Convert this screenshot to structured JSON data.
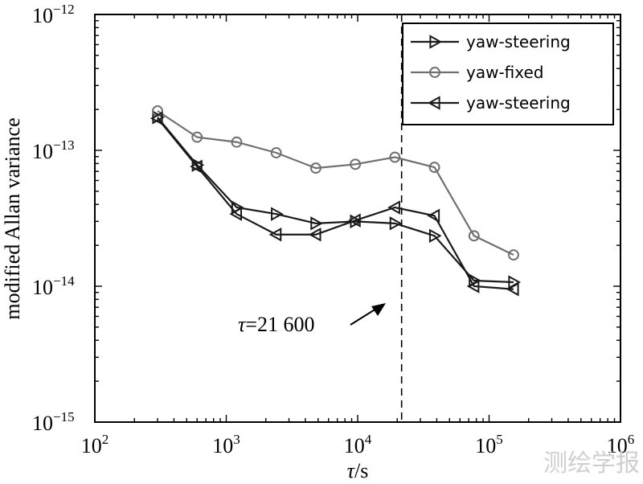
{
  "chart_data": {
    "type": "line",
    "xscale": "log",
    "yscale": "log",
    "xlim": [
      100,
      1000000
    ],
    "ylim": [
      1e-15,
      1e-12
    ],
    "xlabel": "τ/s",
    "ylabel": "modified Allan variance",
    "x_ticks": [
      {
        "value": 100,
        "base": "10",
        "exp": "2"
      },
      {
        "value": 1000,
        "base": "10",
        "exp": "3"
      },
      {
        "value": 10000,
        "base": "10",
        "exp": "4"
      },
      {
        "value": 100000,
        "base": "10",
        "exp": "5"
      },
      {
        "value": 1000000,
        "base": "10",
        "exp": "6"
      }
    ],
    "y_ticks": [
      {
        "value": 1e-12,
        "base": "10",
        "exp": "−12"
      },
      {
        "value": 1e-13,
        "base": "10",
        "exp": "−13"
      },
      {
        "value": 1e-14,
        "base": "10",
        "exp": "−14"
      },
      {
        "value": 1e-15,
        "base": "10",
        "exp": "−15"
      }
    ],
    "series": [
      {
        "name": "yaw-steering",
        "marker": "triangle-right",
        "color": "#1a1a1a",
        "x": [
          300,
          600,
          1200,
          2400,
          4800,
          9600,
          19200,
          38400,
          76800,
          153600
        ],
        "values": [
          1.75e-13,
          7.8e-14,
          3.8e-14,
          3.4e-14,
          2.9e-14,
          3e-14,
          2.9e-14,
          2.35e-14,
          1.1e-14,
          1.07e-14
        ]
      },
      {
        "name": "yaw-fixed",
        "marker": "circle",
        "color": "#707070",
        "x": [
          300,
          600,
          1200,
          2400,
          4800,
          9600,
          19200,
          38400,
          76800,
          153600
        ],
        "values": [
          1.95e-13,
          1.25e-13,
          1.15e-13,
          9.6e-14,
          7.4e-14,
          7.9e-14,
          8.9e-14,
          7.5e-14,
          2.35e-14,
          1.7e-14
        ]
      },
      {
        "name": "yaw-steering",
        "marker": "triangle-left",
        "color": "#1a1a1a",
        "x": [
          300,
          600,
          1200,
          2400,
          4800,
          9600,
          19200,
          38400,
          76800,
          153600
        ],
        "values": [
          1.72e-13,
          7.6e-14,
          3.4e-14,
          2.4e-14,
          2.4e-14,
          3.05e-14,
          3.8e-14,
          3.3e-14,
          1e-14,
          9.5e-15
        ]
      }
    ],
    "reference_line": {
      "x": 21600,
      "style": "dashed"
    },
    "annotation": {
      "var": "τ",
      "text": "=21 600"
    },
    "legend_position": "top-right"
  },
  "watermark": "测绘学报"
}
